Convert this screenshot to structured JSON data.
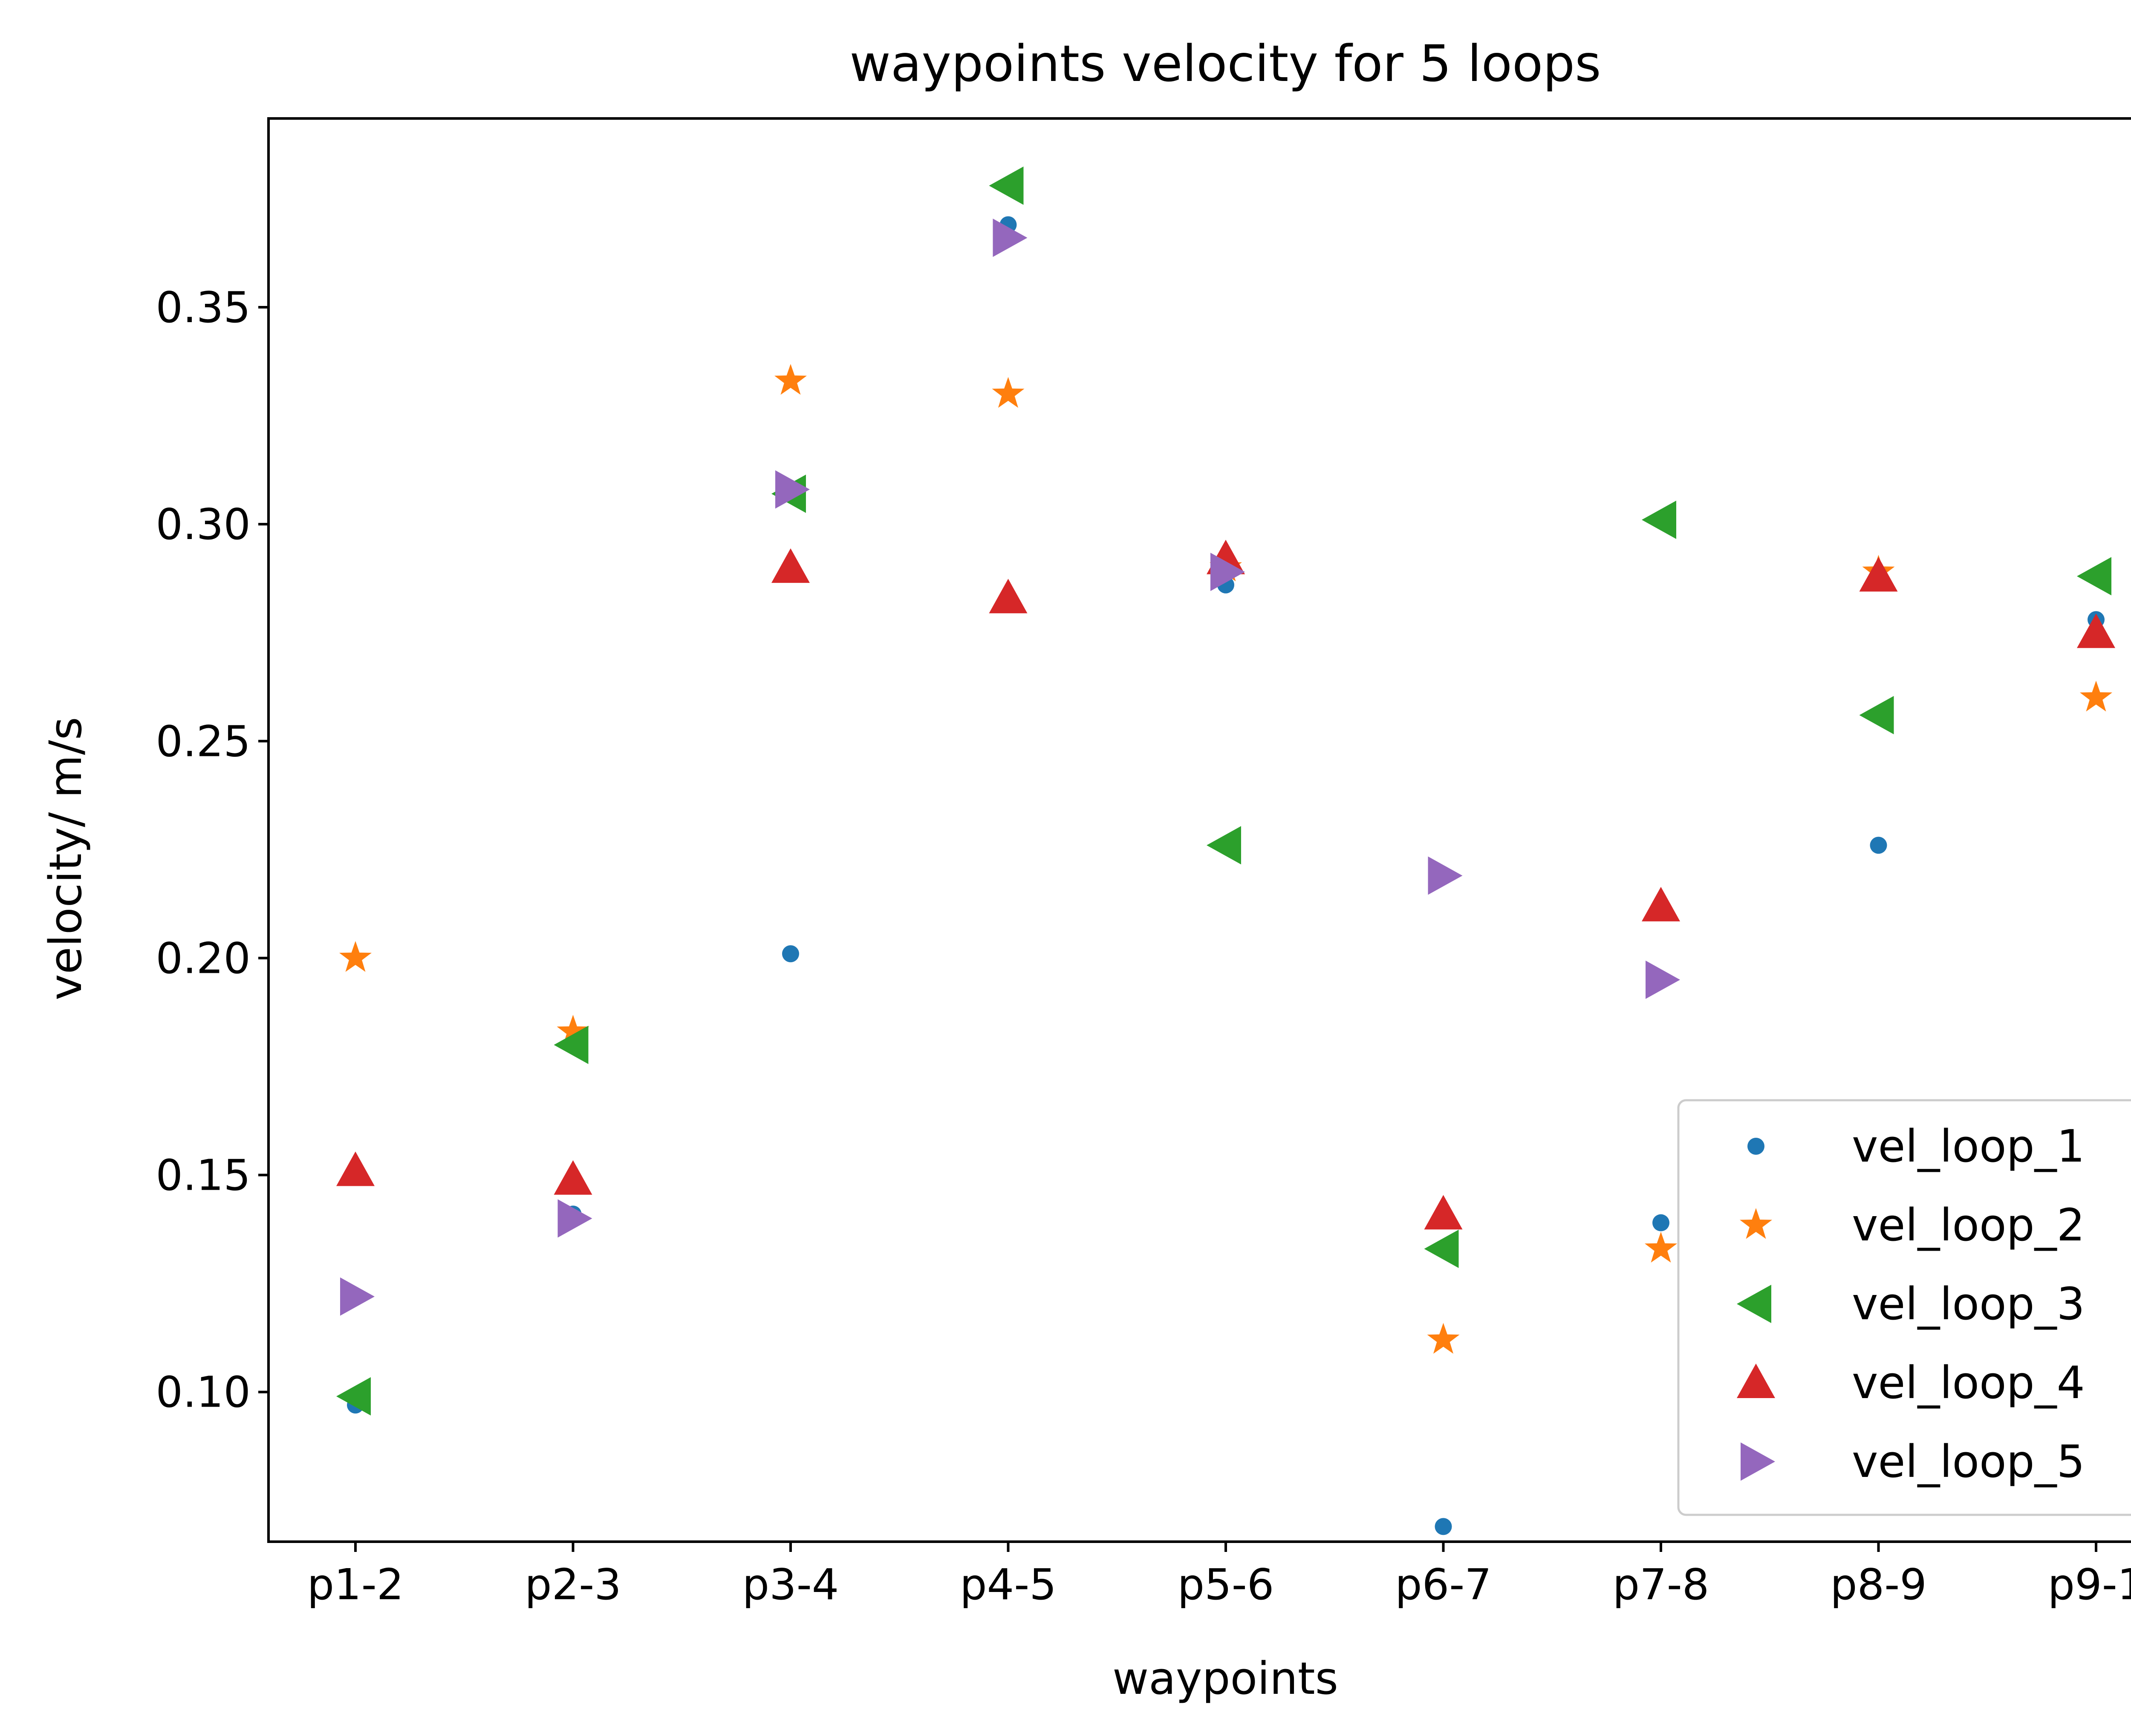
{
  "chart_data": {
    "type": "scatter",
    "title": "waypoints velocity for 5 loops",
    "xlabel": "waypoints",
    "ylabel": "velocity/ m/s",
    "categories": [
      "p1-2",
      "p2-3",
      "p3-4",
      "p4-5",
      "p5-6",
      "p6-7",
      "p7-8",
      "p8-9",
      "p9-1"
    ],
    "ylim": [
      0.0655,
      0.3935
    ],
    "yticks": [
      0.1,
      0.15,
      0.2,
      0.25,
      0.3,
      0.35
    ],
    "ytick_labels": [
      "0.10",
      "0.15",
      "0.20",
      "0.25",
      "0.30",
      "0.35"
    ],
    "grid": false,
    "legend_position": "bottom-right",
    "series": [
      {
        "name": "vel_loop_1",
        "marker": "circle",
        "color": "#1f77b4",
        "values": [
          0.097,
          0.141,
          0.201,
          0.369,
          0.286,
          0.069,
          0.139,
          0.226,
          0.278
        ]
      },
      {
        "name": "vel_loop_2",
        "marker": "star",
        "color": "#ff7f0e",
        "values": [
          0.2,
          0.183,
          0.333,
          0.33,
          0.29,
          0.112,
          0.133,
          0.289,
          0.26
        ]
      },
      {
        "name": "vel_loop_3",
        "marker": "triangle-left",
        "color": "#2ca02c",
        "values": [
          0.099,
          0.18,
          0.307,
          0.378,
          0.226,
          0.133,
          0.301,
          0.256,
          0.288
        ]
      },
      {
        "name": "vel_loop_4",
        "marker": "triangle-up",
        "color": "#d62728",
        "values": [
          0.151,
          0.149,
          0.29,
          0.283,
          0.292,
          0.141,
          0.212,
          0.288,
          0.275
        ]
      },
      {
        "name": "vel_loop_5",
        "marker": "triangle-right",
        "color": "#9467bd",
        "values": [
          0.122,
          0.14,
          0.308,
          0.366,
          0.289,
          0.219,
          0.195,
          null,
          null
        ]
      }
    ]
  }
}
